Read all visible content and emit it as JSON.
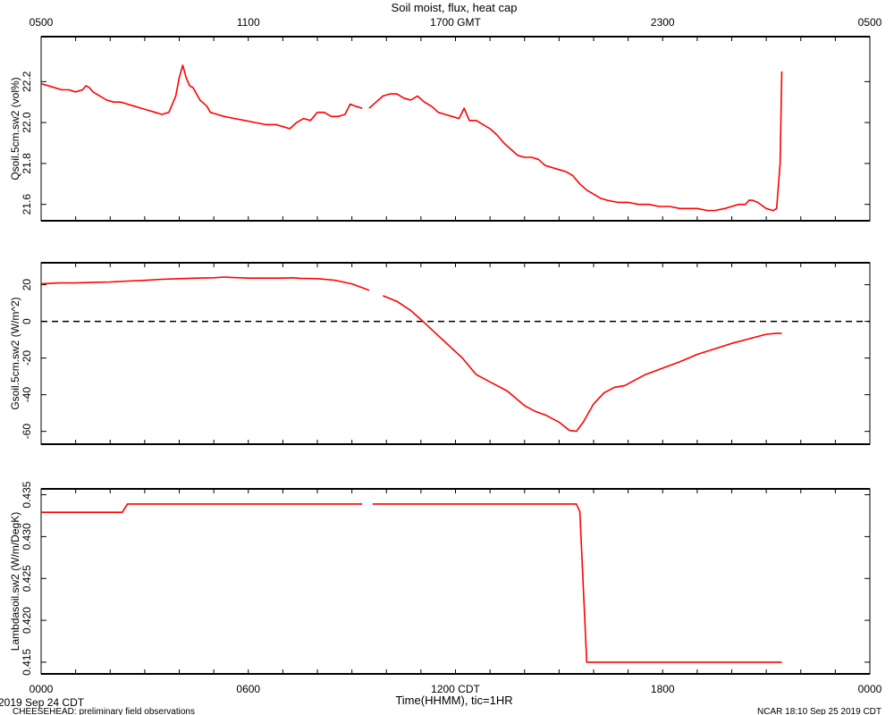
{
  "header": {
    "title": "Soil moist, flux, heat cap",
    "top_tick_labels": [
      "0500",
      "1100",
      "1700 GMT",
      "2300",
      "0500"
    ]
  },
  "footer": {
    "x_tick_labels": [
      "0000",
      "0600",
      "1200 CDT",
      "1800",
      "0000"
    ],
    "x_axis_label": "Time(HHMM), tic=1HR",
    "date_label": "2019 Sep 24 CDT",
    "project_label": "CHEESEHEAD: preliminary field observations",
    "credit_label": "NCAR 18:10 Sep 25 2019 CDT"
  },
  "colors": {
    "series": "#ff0000",
    "axis": "#000000",
    "zero_line": "#000000"
  },
  "chart_data": [
    {
      "type": "line",
      "title": "",
      "xlabel": "Time(HHMM), tic=1HR",
      "ylabel": "Qsoil.5cm.sw2 (vol%)",
      "xlim": [
        0,
        24
      ],
      "ylim": [
        21.52,
        22.42
      ],
      "yticks": [
        21.6,
        21.8,
        22.0,
        22.2
      ],
      "ytick_labels": [
        "21.6",
        "21.8",
        "22.0",
        "22.2"
      ],
      "grid": false,
      "series": [
        {
          "segments": [
            [
              [
                0,
                22.19
              ],
              [
                0.4,
                22.17
              ],
              [
                0.6,
                22.16
              ],
              [
                0.8,
                22.16
              ],
              [
                1.0,
                22.15
              ],
              [
                1.2,
                22.16
              ],
              [
                1.3,
                22.18
              ],
              [
                1.4,
                22.17
              ],
              [
                1.5,
                22.15
              ],
              [
                1.7,
                22.13
              ],
              [
                1.9,
                22.11
              ],
              [
                2.1,
                22.1
              ],
              [
                2.3,
                22.1
              ],
              [
                2.5,
                22.09
              ],
              [
                2.7,
                22.08
              ],
              [
                2.9,
                22.07
              ],
              [
                3.1,
                22.06
              ],
              [
                3.3,
                22.05
              ],
              [
                3.5,
                22.04
              ],
              [
                3.7,
                22.05
              ],
              [
                3.9,
                22.13
              ],
              [
                4.0,
                22.22
              ],
              [
                4.1,
                22.28
              ],
              [
                4.2,
                22.22
              ],
              [
                4.3,
                22.18
              ],
              [
                4.4,
                22.17
              ],
              [
                4.6,
                22.11
              ],
              [
                4.8,
                22.08
              ],
              [
                4.9,
                22.05
              ],
              [
                5.1,
                22.04
              ],
              [
                5.3,
                22.03
              ],
              [
                5.6,
                22.02
              ],
              [
                5.9,
                22.01
              ],
              [
                6.2,
                22.0
              ],
              [
                6.5,
                21.99
              ],
              [
                6.8,
                21.99
              ],
              [
                7.0,
                21.98
              ],
              [
                7.2,
                21.97
              ],
              [
                7.4,
                22.0
              ],
              [
                7.6,
                22.02
              ],
              [
                7.8,
                22.01
              ],
              [
                8.0,
                22.05
              ],
              [
                8.2,
                22.05
              ],
              [
                8.4,
                22.03
              ],
              [
                8.6,
                22.03
              ],
              [
                8.8,
                22.04
              ],
              [
                8.95,
                22.09
              ],
              [
                9.1,
                22.08
              ],
              [
                9.3,
                22.07
              ]
            ],
            [
              [
                9.5,
                22.07
              ],
              [
                9.7,
                22.1
              ],
              [
                9.9,
                22.13
              ],
              [
                10.1,
                22.14
              ],
              [
                10.3,
                22.14
              ],
              [
                10.5,
                22.12
              ],
              [
                10.7,
                22.11
              ],
              [
                10.9,
                22.13
              ],
              [
                11.1,
                22.1
              ],
              [
                11.3,
                22.08
              ],
              [
                11.5,
                22.05
              ],
              [
                11.7,
                22.04
              ],
              [
                11.9,
                22.03
              ],
              [
                12.1,
                22.02
              ],
              [
                12.25,
                22.07
              ],
              [
                12.4,
                22.01
              ],
              [
                12.6,
                22.01
              ],
              [
                12.8,
                21.99
              ],
              [
                13.0,
                21.97
              ],
              [
                13.2,
                21.94
              ],
              [
                13.4,
                21.9
              ],
              [
                13.6,
                21.87
              ],
              [
                13.8,
                21.84
              ],
              [
                14.0,
                21.83
              ],
              [
                14.2,
                21.83
              ],
              [
                14.4,
                21.82
              ],
              [
                14.6,
                21.79
              ],
              [
                14.8,
                21.78
              ],
              [
                15.0,
                21.77
              ],
              [
                15.2,
                21.76
              ],
              [
                15.4,
                21.74
              ],
              [
                15.6,
                21.7
              ],
              [
                15.8,
                21.67
              ],
              [
                16.0,
                21.65
              ],
              [
                16.2,
                21.63
              ],
              [
                16.4,
                21.62
              ],
              [
                16.7,
                21.61
              ],
              [
                17.0,
                21.61
              ],
              [
                17.3,
                21.6
              ],
              [
                17.6,
                21.6
              ],
              [
                17.9,
                21.59
              ],
              [
                18.2,
                21.59
              ],
              [
                18.5,
                21.58
              ],
              [
                18.8,
                21.58
              ],
              [
                19.0,
                21.58
              ],
              [
                19.3,
                21.57
              ],
              [
                19.5,
                21.57
              ],
              [
                19.8,
                21.58
              ],
              [
                20.0,
                21.59
              ],
              [
                20.2,
                21.6
              ],
              [
                20.4,
                21.6
              ],
              [
                20.5,
                21.62
              ],
              [
                20.6,
                21.62
              ],
              [
                20.75,
                21.61
              ],
              [
                21.0,
                21.58
              ],
              [
                21.2,
                21.57
              ],
              [
                21.3,
                21.58
              ],
              [
                21.4,
                21.8
              ],
              [
                21.45,
                22.25
              ]
            ]
          ]
        }
      ]
    },
    {
      "type": "line",
      "title": "",
      "xlabel": "Time(HHMM), tic=1HR",
      "ylabel": "Gsoil.5cm.sw2 (W/m^2)",
      "xlim": [
        0,
        24
      ],
      "ylim": [
        -67,
        32
      ],
      "yticks": [
        -60,
        -40,
        -20,
        0,
        20
      ],
      "ytick_labels": [
        "-60",
        "-40",
        "-20",
        "0",
        "20"
      ],
      "reference_line": 0,
      "grid": false,
      "series": [
        {
          "segments": [
            [
              [
                0,
                20.5
              ],
              [
                0.5,
                21.0
              ],
              [
                1.0,
                21.0
              ],
              [
                1.5,
                21.3
              ],
              [
                2.0,
                21.5
              ],
              [
                2.5,
                22.0
              ],
              [
                3.0,
                22.4
              ],
              [
                3.5,
                23.0
              ],
              [
                4.0,
                23.3
              ],
              [
                4.5,
                23.6
              ],
              [
                5.0,
                23.8
              ],
              [
                5.3,
                24.2
              ],
              [
                5.5,
                24.0
              ],
              [
                6.0,
                23.6
              ],
              [
                6.5,
                23.6
              ],
              [
                7.0,
                23.6
              ],
              [
                7.3,
                23.8
              ],
              [
                7.5,
                23.5
              ],
              [
                8.0,
                23.3
              ],
              [
                8.5,
                22.5
              ],
              [
                9.0,
                20.5
              ],
              [
                9.5,
                17.0
              ]
            ],
            [
              [
                9.9,
                14.0
              ],
              [
                10.3,
                11.0
              ],
              [
                10.7,
                6.0
              ],
              [
                11.0,
                1.0
              ],
              [
                11.4,
                -6.0
              ],
              [
                11.8,
                -13.0
              ],
              [
                12.2,
                -20.0
              ],
              [
                12.6,
                -29.0
              ],
              [
                13.0,
                -33.0
              ],
              [
                13.5,
                -38.0
              ],
              [
                14.0,
                -46.0
              ],
              [
                14.3,
                -49.0
              ],
              [
                14.6,
                -51.0
              ],
              [
                15.0,
                -55.0
              ],
              [
                15.3,
                -59.5
              ],
              [
                15.5,
                -60.0
              ],
              [
                15.7,
                -55.0
              ],
              [
                16.0,
                -45.0
              ],
              [
                16.3,
                -39.0
              ],
              [
                16.6,
                -36.0
              ],
              [
                16.9,
                -35.0
              ],
              [
                17.2,
                -32.0
              ],
              [
                17.5,
                -29.0
              ],
              [
                18.0,
                -25.5
              ],
              [
                18.5,
                -22.0
              ],
              [
                19.0,
                -18.0
              ],
              [
                19.5,
                -15.0
              ],
              [
                20.0,
                -12.0
              ],
              [
                20.5,
                -9.5
              ],
              [
                21.0,
                -7.0
              ],
              [
                21.3,
                -6.5
              ],
              [
                21.45,
                -6.5
              ]
            ]
          ]
        }
      ]
    },
    {
      "type": "line",
      "title": "",
      "xlabel": "Time(HHMM), tic=1HR",
      "ylabel": "Lambdasoil.sw2 (W/m/DegK)",
      "xlim": [
        0,
        24
      ],
      "ylim": [
        0.4136,
        0.4357
      ],
      "yticks": [
        0.415,
        0.42,
        0.425,
        0.43,
        0.435
      ],
      "ytick_labels": [
        "0.415",
        "0.420",
        "0.425",
        "0.430",
        "0.435"
      ],
      "grid": false,
      "series": [
        {
          "segments": [
            [
              [
                0,
                0.4329
              ],
              [
                2.35,
                0.4329
              ],
              [
                2.5,
                0.4339
              ],
              [
                9.3,
                0.4339
              ]
            ],
            [
              [
                9.6,
                0.4339
              ],
              [
                15.5,
                0.4339
              ],
              [
                15.6,
                0.433
              ],
              [
                15.8,
                0.415
              ],
              [
                21.45,
                0.415
              ]
            ]
          ]
        }
      ]
    }
  ]
}
